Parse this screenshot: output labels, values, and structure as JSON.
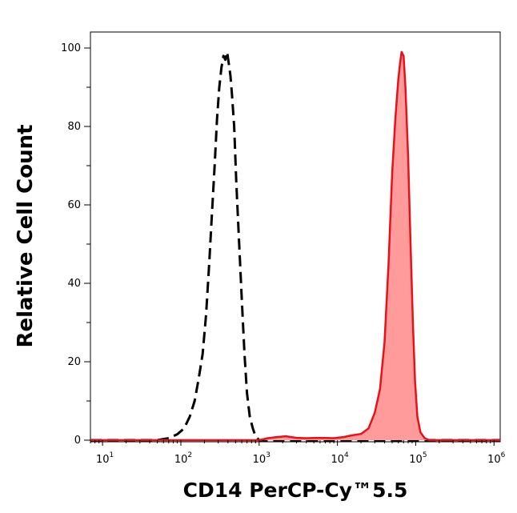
{
  "chart_data": {
    "type": "area",
    "xlabel": "CD14 PerCP-Cy™5.5",
    "ylabel": "Relative Cell Count",
    "x_scale": "log",
    "xlim": [
      7,
      1200000
    ],
    "ylim": [
      0,
      100
    ],
    "x_ticks": [
      {
        "value": 10,
        "base": "10",
        "exp": "1"
      },
      {
        "value": 100,
        "base": "10",
        "exp": "2"
      },
      {
        "value": 1000,
        "base": "10",
        "exp": "3"
      },
      {
        "value": 10000,
        "base": "10",
        "exp": "4"
      },
      {
        "value": 100000,
        "base": "10",
        "exp": "5"
      },
      {
        "value": 1000000,
        "base": "10",
        "exp": "6"
      }
    ],
    "y_ticks": [
      "0",
      "20",
      "40",
      "60",
      "80",
      "100"
    ],
    "grid": false,
    "series": [
      {
        "style": "dashed-black",
        "color": "#000000",
        "points": [
          [
            7,
            0
          ],
          [
            50,
            0
          ],
          [
            70,
            0.5
          ],
          [
            90,
            1.5
          ],
          [
            110,
            3
          ],
          [
            130,
            6
          ],
          [
            150,
            10
          ],
          [
            170,
            16
          ],
          [
            190,
            22
          ],
          [
            210,
            32
          ],
          [
            230,
            45
          ],
          [
            250,
            58
          ],
          [
            270,
            70
          ],
          [
            290,
            82
          ],
          [
            310,
            90
          ],
          [
            330,
            95
          ],
          [
            350,
            98
          ],
          [
            370,
            97
          ],
          [
            390,
            99
          ],
          [
            410,
            96
          ],
          [
            430,
            93
          ],
          [
            450,
            88
          ],
          [
            480,
            80
          ],
          [
            510,
            66
          ],
          [
            550,
            52
          ],
          [
            600,
            36
          ],
          [
            650,
            22
          ],
          [
            700,
            12
          ],
          [
            760,
            6
          ],
          [
            830,
            3
          ],
          [
            900,
            1
          ],
          [
            1000,
            0
          ],
          [
            1200000,
            0
          ]
        ]
      },
      {
        "style": "filled-red",
        "color": "#e8111a",
        "fill": "#ff9b9b",
        "points": [
          [
            7,
            0
          ],
          [
            1000,
            0
          ],
          [
            1300,
            0.5
          ],
          [
            1700,
            0.8
          ],
          [
            2200,
            1.0
          ],
          [
            3000,
            0.6
          ],
          [
            4000,
            0.5
          ],
          [
            6000,
            0.6
          ],
          [
            9000,
            0.5
          ],
          [
            12000,
            0.8
          ],
          [
            15000,
            1.2
          ],
          [
            20000,
            1.6
          ],
          [
            25000,
            3
          ],
          [
            30000,
            7
          ],
          [
            35000,
            13
          ],
          [
            40000,
            25
          ],
          [
            45000,
            45
          ],
          [
            50000,
            68
          ],
          [
            55000,
            82
          ],
          [
            60000,
            92
          ],
          [
            63000,
            96
          ],
          [
            66000,
            99
          ],
          [
            70000,
            98
          ],
          [
            74000,
            90
          ],
          [
            80000,
            72
          ],
          [
            86000,
            50
          ],
          [
            92000,
            30
          ],
          [
            98000,
            15
          ],
          [
            105000,
            6
          ],
          [
            115000,
            2
          ],
          [
            130000,
            0.5
          ],
          [
            150000,
            0
          ],
          [
            1200000,
            0
          ]
        ]
      }
    ]
  }
}
